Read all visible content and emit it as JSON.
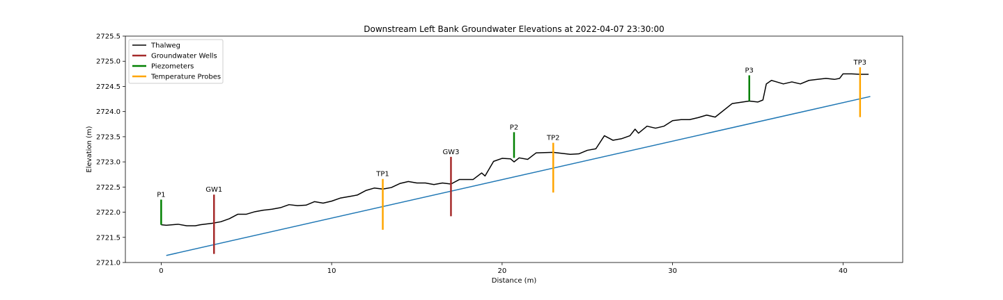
{
  "chart_data": {
    "type": "line",
    "title": "Downstream Left Bank Groundwater Elevations at 2022-04-07 23:30:00",
    "xlabel": "Distance (m)",
    "ylabel": "Elevation (m)",
    "xlim": [
      -2.1,
      43.5
    ],
    "ylim": [
      2721.0,
      2725.5
    ],
    "xticks": [
      0,
      10,
      20,
      30,
      40
    ],
    "yticks": [
      2721.0,
      2721.5,
      2722.0,
      2722.5,
      2723.0,
      2723.5,
      2724.0,
      2724.5,
      2725.0,
      2725.5
    ],
    "xtick_labels": [
      "0",
      "10",
      "20",
      "30",
      "40"
    ],
    "ytick_labels": [
      "2721.0",
      "2721.5",
      "2722.0",
      "2722.5",
      "2723.0",
      "2723.5",
      "2724.0",
      "2724.5",
      "2725.0",
      "2725.5"
    ],
    "grid": false,
    "legend_position": "upper left",
    "legend": [
      {
        "label": "Thalweg",
        "color": "#000000"
      },
      {
        "label": "Groundwater Wells",
        "color": "#a52a2a"
      },
      {
        "label": "Piezometers",
        "color": "#008000"
      },
      {
        "label": "Temperature Probes",
        "color": "#ffa500"
      }
    ],
    "thalweg": {
      "color": "#000000",
      "x": [
        0.0,
        0.3,
        1.0,
        1.5,
        2.0,
        2.3,
        3.0,
        3.5,
        4.0,
        4.5,
        5.0,
        5.5,
        6.0,
        6.5,
        7.0,
        7.5,
        8.0,
        8.5,
        9.0,
        9.5,
        10.0,
        10.5,
        11.0,
        11.5,
        12.0,
        12.5,
        13.0,
        13.5,
        14.0,
        14.5,
        15.0,
        15.5,
        16.0,
        16.5,
        17.0,
        17.5,
        18.0,
        18.3,
        18.8,
        19.0,
        19.5,
        20.0,
        20.5,
        20.7,
        21.0,
        21.5,
        22.0,
        23.0,
        24.0,
        24.5,
        25.0,
        25.5,
        26.0,
        26.5,
        27.0,
        27.5,
        27.8,
        28.0,
        28.5,
        29.0,
        29.5,
        30.0,
        30.5,
        31.0,
        31.5,
        32.0,
        32.5,
        33.5,
        34.5,
        35.0,
        35.3,
        35.5,
        35.8,
        36.0,
        36.5,
        37.0,
        37.5,
        38.0,
        38.5,
        39.0,
        39.5,
        39.8,
        40.0,
        40.5,
        41.0,
        41.5
      ],
      "y": [
        2721.75,
        2721.74,
        2721.76,
        2721.73,
        2721.73,
        2721.75,
        2721.78,
        2721.81,
        2721.87,
        2721.96,
        2721.96,
        2722.01,
        2722.04,
        2722.06,
        2722.09,
        2722.15,
        2722.13,
        2722.14,
        2722.21,
        2722.18,
        2722.22,
        2722.28,
        2722.31,
        2722.34,
        2722.43,
        2722.48,
        2722.46,
        2722.49,
        2722.57,
        2722.61,
        2722.58,
        2722.58,
        2722.55,
        2722.58,
        2722.56,
        2722.65,
        2722.65,
        2722.65,
        2722.78,
        2722.72,
        2723.01,
        2723.07,
        2723.06,
        2723.0,
        2723.08,
        2723.05,
        2723.18,
        2723.19,
        2723.15,
        2723.16,
        2723.23,
        2723.26,
        2723.52,
        2723.43,
        2723.46,
        2723.52,
        2723.65,
        2723.57,
        2723.71,
        2723.67,
        2723.71,
        2723.82,
        2723.84,
        2723.84,
        2723.88,
        2723.93,
        2723.89,
        2724.16,
        2724.21,
        2724.19,
        2724.23,
        2724.55,
        2724.62,
        2724.6,
        2724.55,
        2724.59,
        2724.55,
        2724.62,
        2724.64,
        2724.66,
        2724.64,
        2724.66,
        2724.75,
        2724.75,
        2724.74,
        2724.74
      ]
    },
    "groundwater_line": {
      "color": "#1f77b4",
      "x": [
        0.3,
        41.6
      ],
      "y": [
        2721.14,
        2724.3
      ]
    },
    "wells": [
      {
        "name": "GW1",
        "x": 3.1,
        "y_top": 2722.35,
        "y_bottom": 2721.17,
        "color": "#a52a2a"
      },
      {
        "name": "GW3",
        "x": 17.0,
        "y_top": 2723.1,
        "y_bottom": 2721.92,
        "color": "#a52a2a"
      }
    ],
    "piezometers": [
      {
        "name": "P1",
        "x": 0.0,
        "y_top": 2722.25,
        "y_bottom": 2721.75,
        "color": "#008000"
      },
      {
        "name": "P2",
        "x": 20.7,
        "y_top": 2723.59,
        "y_bottom": 2723.08,
        "color": "#008000"
      },
      {
        "name": "P3",
        "x": 34.5,
        "y_top": 2724.72,
        "y_bottom": 2724.21,
        "color": "#008000"
      }
    ],
    "temperature_probes": [
      {
        "name": "TP1",
        "x": 13.0,
        "y_top": 2722.66,
        "y_bottom": 2721.65,
        "color": "#ffa500"
      },
      {
        "name": "TP2",
        "x": 23.0,
        "y_top": 2723.38,
        "y_bottom": 2722.39,
        "color": "#ffa500"
      },
      {
        "name": "TP3",
        "x": 41.0,
        "y_top": 2724.88,
        "y_bottom": 2723.89,
        "color": "#ffa500"
      }
    ]
  }
}
